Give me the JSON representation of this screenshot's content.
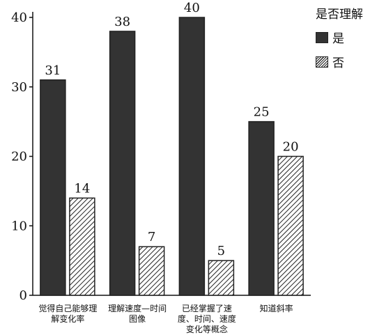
{
  "chart_data": {
    "type": "bar",
    "title": "",
    "xlabel": "",
    "ylabel": "",
    "ylim": [
      0,
      40
    ],
    "yticks": [
      0,
      10,
      20,
      30,
      40
    ],
    "categories": [
      "觉得自己能够理解变化率",
      "理解速度—时间图像",
      "已经掌握了速度、时间、速度变化等概念",
      "知道斜率"
    ],
    "series": [
      {
        "name": "是",
        "values": [
          31,
          38,
          40,
          25
        ],
        "color": "#333333",
        "pattern": "solid"
      },
      {
        "name": "否",
        "values": [
          14,
          7,
          5,
          20
        ],
        "color": "#ffffff",
        "pattern": "hatch"
      }
    ],
    "legend": {
      "title": "是否理解",
      "position": "top-right"
    },
    "grid": false
  }
}
